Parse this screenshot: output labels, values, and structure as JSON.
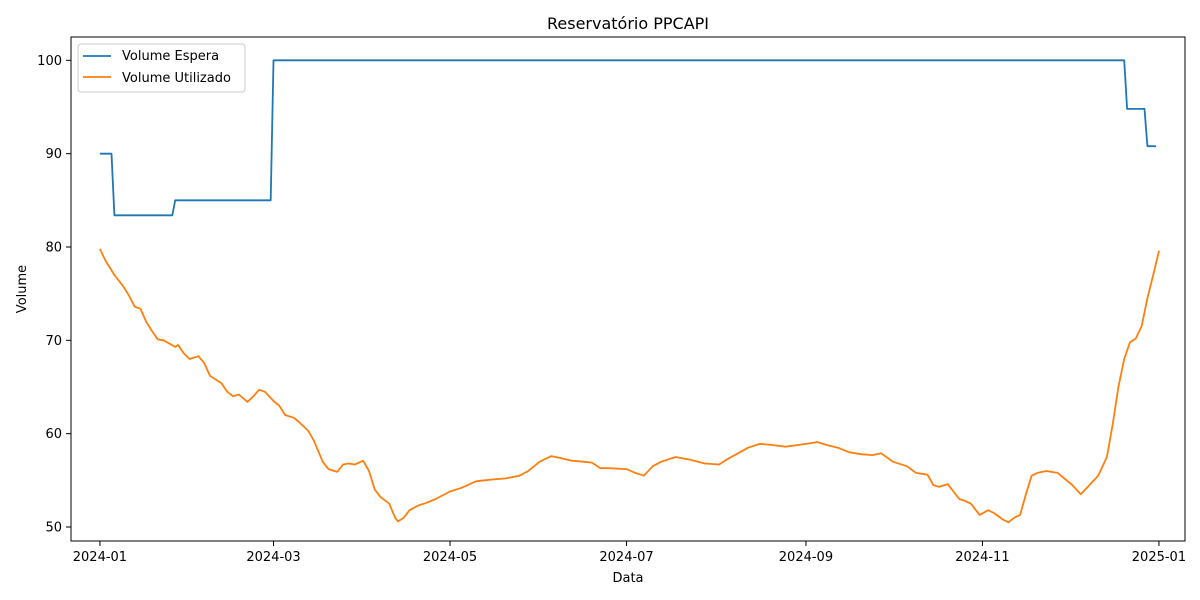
{
  "chart_data": {
    "type": "line",
    "title": "Reservatório PPCAPI",
    "xlabel": "Data",
    "ylabel": "Volume",
    "x_ticks": [
      "2024-01",
      "2024-03",
      "2024-05",
      "2024-07",
      "2024-09",
      "2024-11",
      "2025-01"
    ],
    "y_ticks": [
      50,
      60,
      70,
      80,
      90,
      100
    ],
    "xlim": [
      "2023-12-22",
      "2025-01-10"
    ],
    "ylim": [
      48.5,
      102.5
    ],
    "grid": false,
    "legend_position": "top-left",
    "series": [
      {
        "name": "Volume Espera",
        "color": "#1f77b4",
        "points": [
          [
            "2024-01-01",
            90
          ],
          [
            "2024-01-05",
            90
          ],
          [
            "2024-01-06",
            83.4
          ],
          [
            "2024-01-26",
            83.4
          ],
          [
            "2024-01-27",
            85
          ],
          [
            "2024-02-29",
            85
          ],
          [
            "2024-03-01",
            100
          ],
          [
            "2024-12-20",
            100
          ],
          [
            "2024-12-21",
            94.8
          ],
          [
            "2024-12-27",
            94.8
          ],
          [
            "2024-12-28",
            90.8
          ],
          [
            "2024-12-31",
            90.8
          ]
        ]
      },
      {
        "name": "Volume Utilizado",
        "color": "#ff7f0e",
        "points": [
          [
            "2024-01-01",
            79.8
          ],
          [
            "2024-01-03",
            78.5
          ],
          [
            "2024-01-06",
            77.0
          ],
          [
            "2024-01-09",
            75.8
          ],
          [
            "2024-01-11",
            74.8
          ],
          [
            "2024-01-13",
            73.6
          ],
          [
            "2024-01-15",
            73.4
          ],
          [
            "2024-01-17",
            72.0
          ],
          [
            "2024-01-19",
            71.0
          ],
          [
            "2024-01-21",
            70.1
          ],
          [
            "2024-01-23",
            70.0
          ],
          [
            "2024-01-27",
            69.3
          ],
          [
            "2024-01-28",
            69.5
          ],
          [
            "2024-01-30",
            68.6
          ],
          [
            "2024-02-01",
            68.0
          ],
          [
            "2024-02-04",
            68.3
          ],
          [
            "2024-02-06",
            67.6
          ],
          [
            "2024-02-08",
            66.2
          ],
          [
            "2024-02-10",
            65.8
          ],
          [
            "2024-02-12",
            65.4
          ],
          [
            "2024-02-14",
            64.5
          ],
          [
            "2024-02-16",
            64.0
          ],
          [
            "2024-02-18",
            64.2
          ],
          [
            "2024-02-21",
            63.4
          ],
          [
            "2024-02-23",
            64.0
          ],
          [
            "2024-02-25",
            64.7
          ],
          [
            "2024-02-27",
            64.5
          ],
          [
            "2024-03-01",
            63.5
          ],
          [
            "2024-03-03",
            63.0
          ],
          [
            "2024-03-05",
            62.0
          ],
          [
            "2024-03-08",
            61.7
          ],
          [
            "2024-03-10",
            61.2
          ],
          [
            "2024-03-13",
            60.3
          ],
          [
            "2024-03-15",
            59.2
          ],
          [
            "2024-03-18",
            57.0
          ],
          [
            "2024-03-20",
            56.2
          ],
          [
            "2024-03-23",
            55.9
          ],
          [
            "2024-03-25",
            56.7
          ],
          [
            "2024-03-27",
            56.8
          ],
          [
            "2024-03-29",
            56.7
          ],
          [
            "2024-04-01",
            57.1
          ],
          [
            "2024-04-03",
            56.0
          ],
          [
            "2024-04-05",
            54.0
          ],
          [
            "2024-04-07",
            53.2
          ],
          [
            "2024-04-10",
            52.5
          ],
          [
            "2024-04-12",
            51.0
          ],
          [
            "2024-04-13",
            50.6
          ],
          [
            "2024-04-15",
            51.0
          ],
          [
            "2024-04-17",
            51.8
          ],
          [
            "2024-04-20",
            52.3
          ],
          [
            "2024-04-23",
            52.6
          ],
          [
            "2024-04-26",
            53.0
          ],
          [
            "2024-05-01",
            53.8
          ],
          [
            "2024-05-05",
            54.2
          ],
          [
            "2024-05-10",
            54.9
          ],
          [
            "2024-05-13",
            55.0
          ],
          [
            "2024-05-16",
            55.1
          ],
          [
            "2024-05-20",
            55.2
          ],
          [
            "2024-05-25",
            55.5
          ],
          [
            "2024-05-28",
            56.0
          ],
          [
            "2024-06-01",
            57.0
          ],
          [
            "2024-06-05",
            57.6
          ],
          [
            "2024-06-08",
            57.4
          ],
          [
            "2024-06-12",
            57.1
          ],
          [
            "2024-06-16",
            57.0
          ],
          [
            "2024-06-19",
            56.9
          ],
          [
            "2024-06-22",
            56.3
          ],
          [
            "2024-06-25",
            56.3
          ],
          [
            "2024-07-01",
            56.2
          ],
          [
            "2024-07-04",
            55.8
          ],
          [
            "2024-07-07",
            55.5
          ],
          [
            "2024-07-10",
            56.5
          ],
          [
            "2024-07-13",
            57.0
          ],
          [
            "2024-07-18",
            57.5
          ],
          [
            "2024-07-23",
            57.2
          ],
          [
            "2024-07-28",
            56.8
          ],
          [
            "2024-08-02",
            56.7
          ],
          [
            "2024-08-05",
            57.3
          ],
          [
            "2024-08-08",
            57.8
          ],
          [
            "2024-08-12",
            58.5
          ],
          [
            "2024-08-16",
            58.9
          ],
          [
            "2024-08-20",
            58.8
          ],
          [
            "2024-08-25",
            58.6
          ],
          [
            "2024-09-01",
            58.9
          ],
          [
            "2024-09-05",
            59.1
          ],
          [
            "2024-09-08",
            58.8
          ],
          [
            "2024-09-12",
            58.5
          ],
          [
            "2024-09-16",
            58.0
          ],
          [
            "2024-09-20",
            57.8
          ],
          [
            "2024-09-24",
            57.7
          ],
          [
            "2024-09-27",
            57.9
          ],
          [
            "2024-10-01",
            57.0
          ],
          [
            "2024-10-06",
            56.5
          ],
          [
            "2024-10-09",
            55.8
          ],
          [
            "2024-10-13",
            55.6
          ],
          [
            "2024-10-15",
            54.5
          ],
          [
            "2024-10-17",
            54.3
          ],
          [
            "2024-10-20",
            54.6
          ],
          [
            "2024-10-24",
            53.0
          ],
          [
            "2024-10-26",
            52.8
          ],
          [
            "2024-10-28",
            52.5
          ],
          [
            "2024-10-31",
            51.3
          ],
          [
            "2024-11-03",
            51.8
          ],
          [
            "2024-11-05",
            51.5
          ],
          [
            "2024-11-08",
            50.8
          ],
          [
            "2024-11-10",
            50.5
          ],
          [
            "2024-11-12",
            51.0
          ],
          [
            "2024-11-14",
            51.3
          ],
          [
            "2024-11-16",
            53.5
          ],
          [
            "2024-11-18",
            55.5
          ],
          [
            "2024-11-20",
            55.8
          ],
          [
            "2024-11-23",
            56.0
          ],
          [
            "2024-11-27",
            55.8
          ],
          [
            "2024-12-02",
            54.5
          ],
          [
            "2024-12-05",
            53.5
          ],
          [
            "2024-12-08",
            54.5
          ],
          [
            "2024-12-11",
            55.5
          ],
          [
            "2024-12-14",
            57.5
          ],
          [
            "2024-12-16",
            61.0
          ],
          [
            "2024-12-18",
            65.0
          ],
          [
            "2024-12-20",
            68.0
          ],
          [
            "2024-12-22",
            69.8
          ],
          [
            "2024-12-24",
            70.2
          ],
          [
            "2024-12-26",
            71.5
          ],
          [
            "2024-12-28",
            74.5
          ],
          [
            "2024-12-30",
            77.0
          ],
          [
            "2025-01-01",
            79.6
          ]
        ]
      }
    ]
  }
}
